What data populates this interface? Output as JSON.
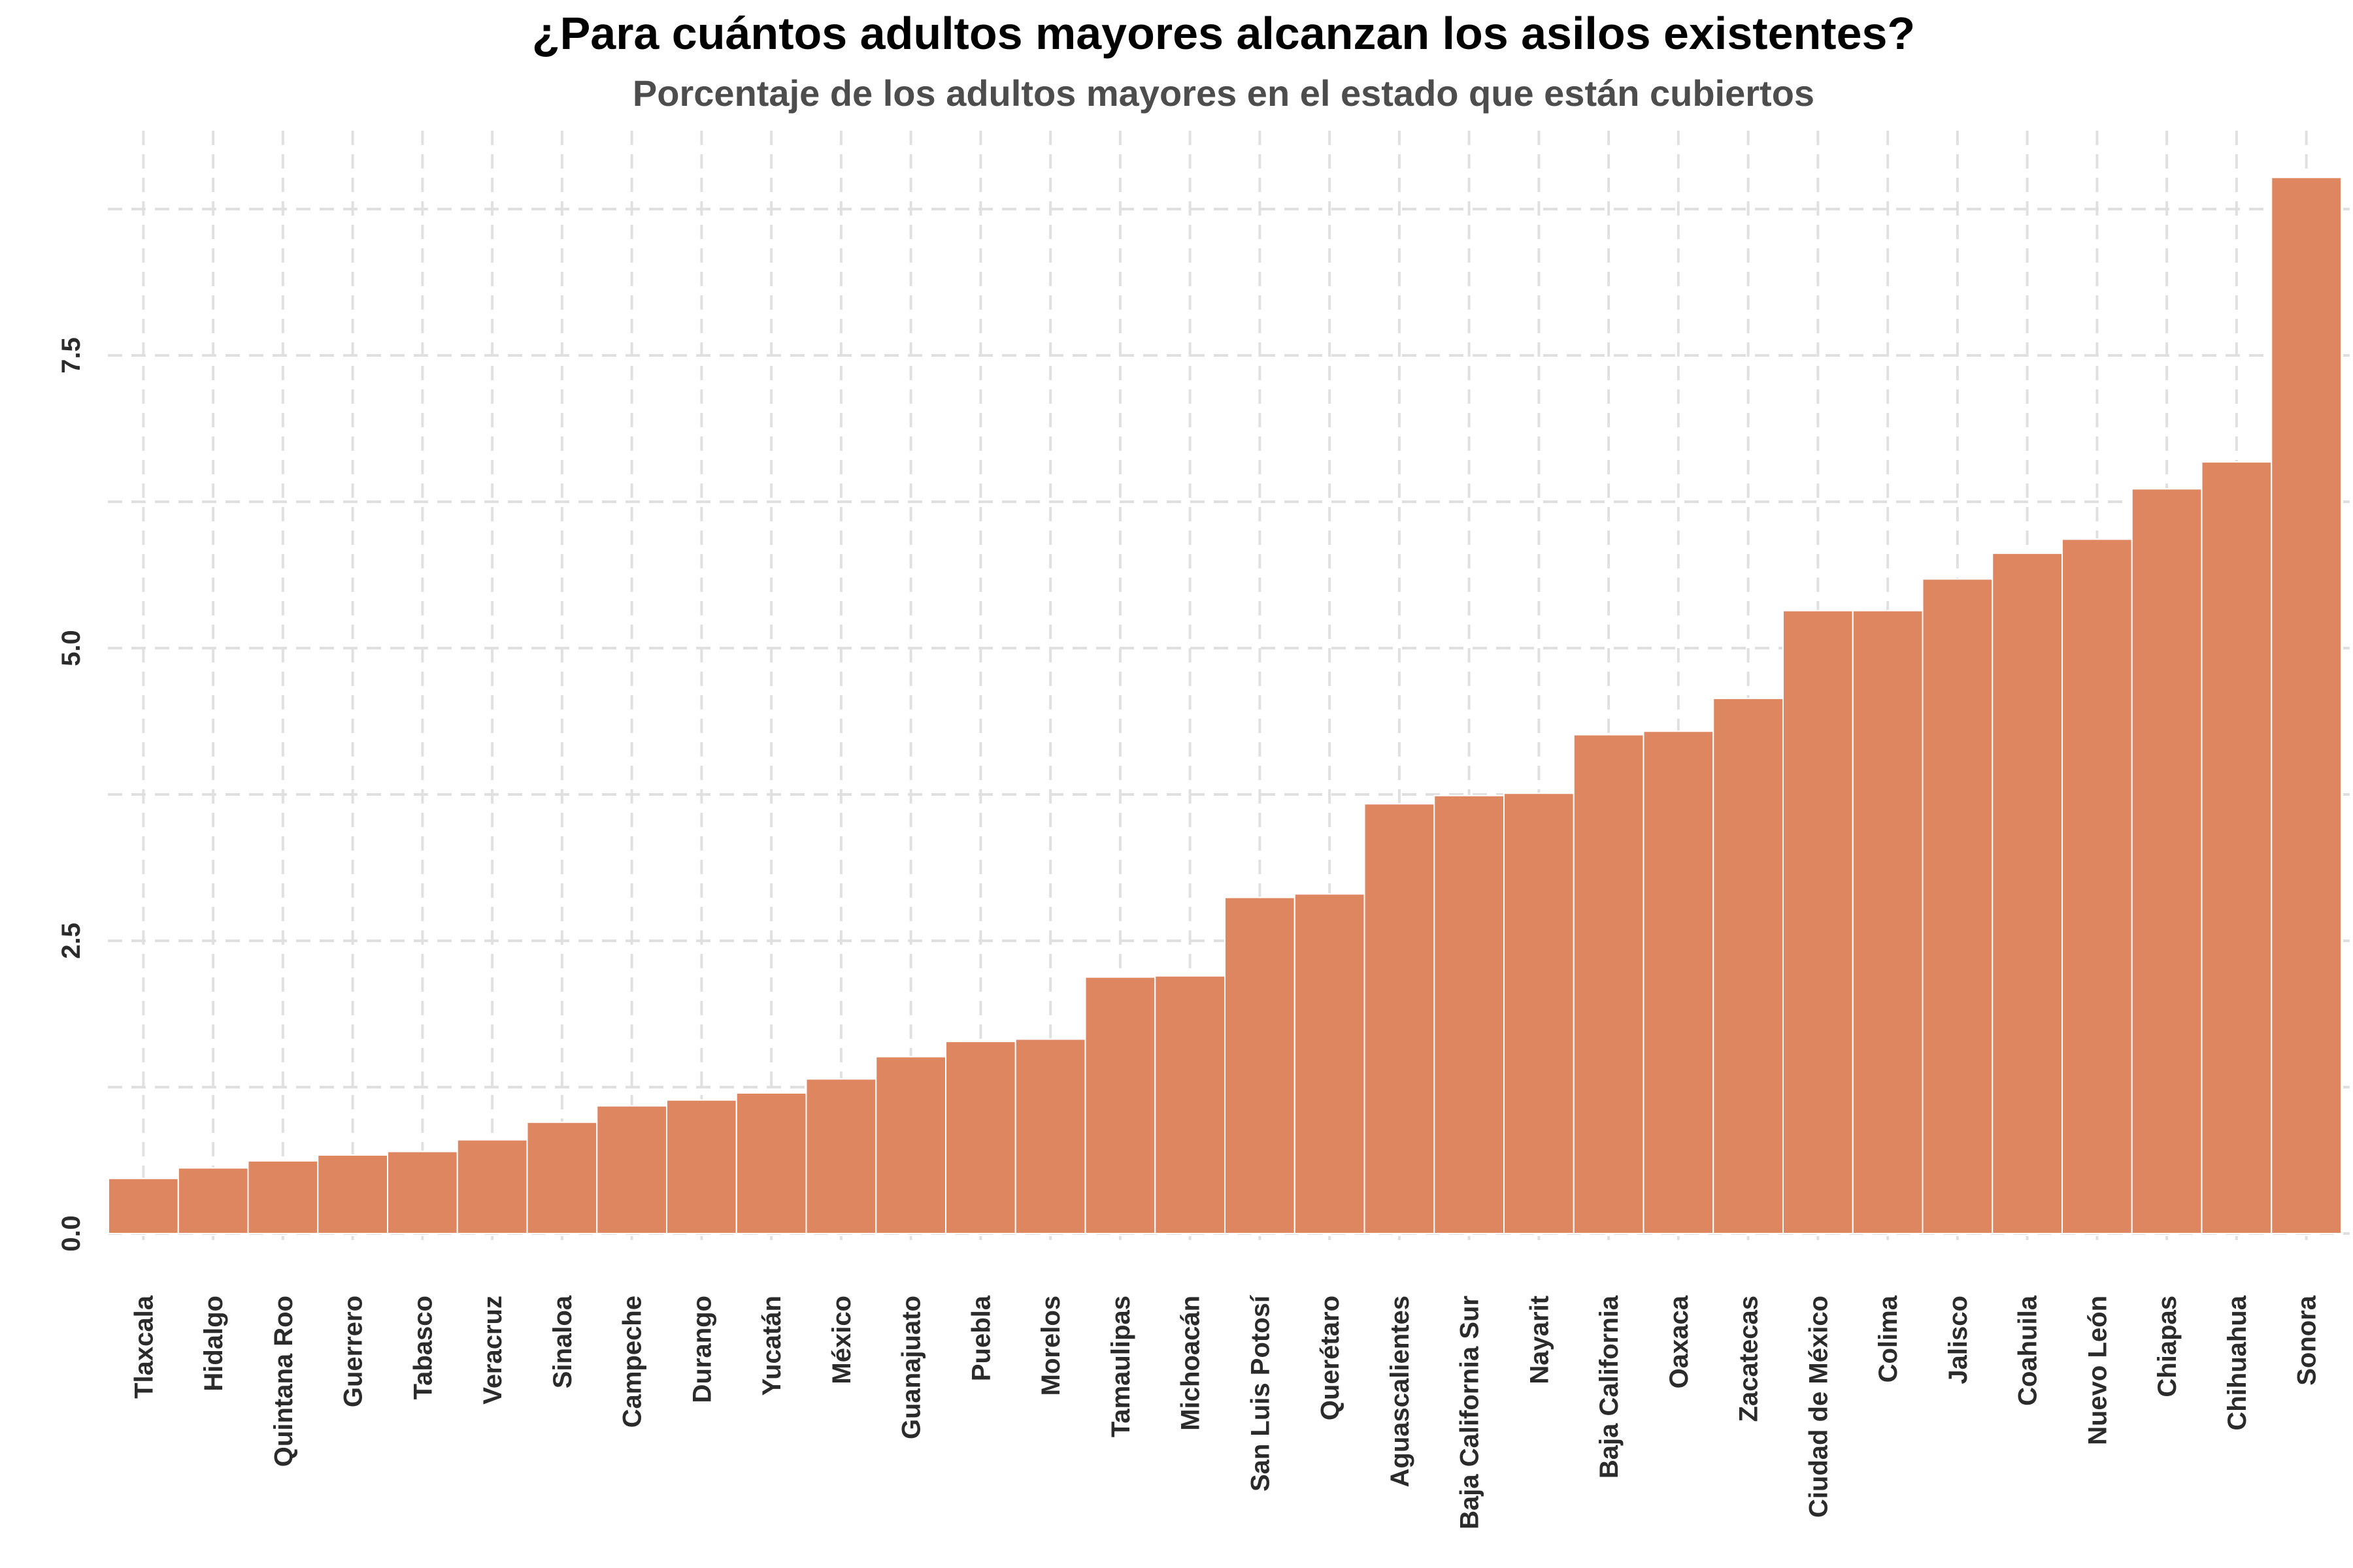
{
  "chart_data": {
    "type": "bar",
    "title": "¿Para cuántos adultos mayores alcanzan los asilos existentes?",
    "subtitle": "Porcentaje de los adultos mayores en el estado que están cubiertos",
    "xlabel": "",
    "ylabel": "",
    "categories": [
      "Tlaxcala",
      "Hidalgo",
      "Quintana Roo",
      "Guerrero",
      "Tabasco",
      "Veracruz",
      "Sinaloa",
      "Campeche",
      "Durango",
      "Yucatán",
      "México",
      "Guanajuato",
      "Puebla",
      "Morelos",
      "Tamaulipas",
      "Michoacán",
      "San Luis Potosí",
      "Querétaro",
      "Aguascalientes",
      "Baja California Sur",
      "Nayarit",
      "Baja California",
      "Oaxaca",
      "Zacatecas",
      "Ciudad de México",
      "Colima",
      "Jalisco",
      "Coahuila",
      "Nuevo León",
      "Chiapas",
      "Chihuahua",
      "Sonora"
    ],
    "values": [
      0.47,
      0.56,
      0.62,
      0.67,
      0.7,
      0.8,
      0.95,
      1.09,
      1.14,
      1.2,
      1.32,
      1.51,
      1.64,
      1.66,
      2.19,
      2.2,
      2.87,
      2.9,
      3.67,
      3.74,
      3.76,
      4.26,
      4.29,
      4.57,
      5.32,
      5.32,
      5.59,
      5.81,
      5.93,
      6.36,
      6.59,
      9.02
    ],
    "ylim": [
      0,
      9.3
    ],
    "yticks": [
      "0.0",
      "2.5",
      "5.0",
      "7.5"
    ],
    "ytick_values": [
      0,
      2.5,
      5.0,
      7.5
    ],
    "grid": true,
    "legend": "none",
    "bar_color": "#DE8660",
    "grid_color": "#e0e0e0"
  }
}
